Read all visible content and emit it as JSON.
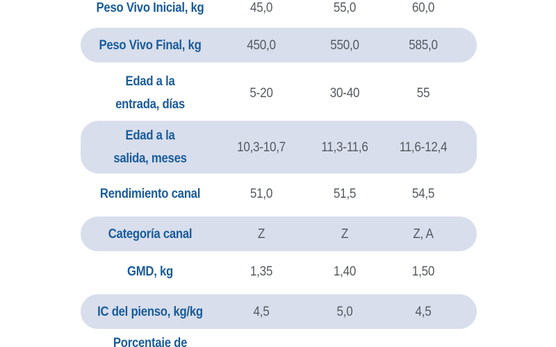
{
  "rows": [
    {
      "label": "Peso Vivo Inicial, kg",
      "values": [
        "45,0",
        "55,0",
        "60,0"
      ]
    },
    {
      "label": "Peso Vivo Final, kg",
      "values": [
        "450,0",
        "550,0",
        "585,0"
      ]
    },
    {
      "label": "Edad a la\nentrada, días",
      "values": [
        "5-20",
        "30-40",
        "55"
      ]
    },
    {
      "label": "Edad a la\nsalida, meses",
      "values": [
        "10,3-10,7",
        "11,3-11,6",
        "11,6-12,4"
      ]
    },
    {
      "label": "Rendimiento canal",
      "values": [
        "51,0",
        "51,5",
        "54,5"
      ]
    },
    {
      "label": "Categoría canal",
      "values": [
        "Z",
        "Z",
        "Z, A"
      ]
    },
    {
      "label": "GMD, kg",
      "values": [
        "1,35",
        "1,40",
        "1,50"
      ]
    },
    {
      "label": "IC del pienso, kg/kg",
      "values": [
        "4,5",
        "5,0",
        "4,5"
      ]
    },
    {
      "label": "Porcentaje de",
      "values": [
        "",
        "",
        ""
      ]
    }
  ]
}
